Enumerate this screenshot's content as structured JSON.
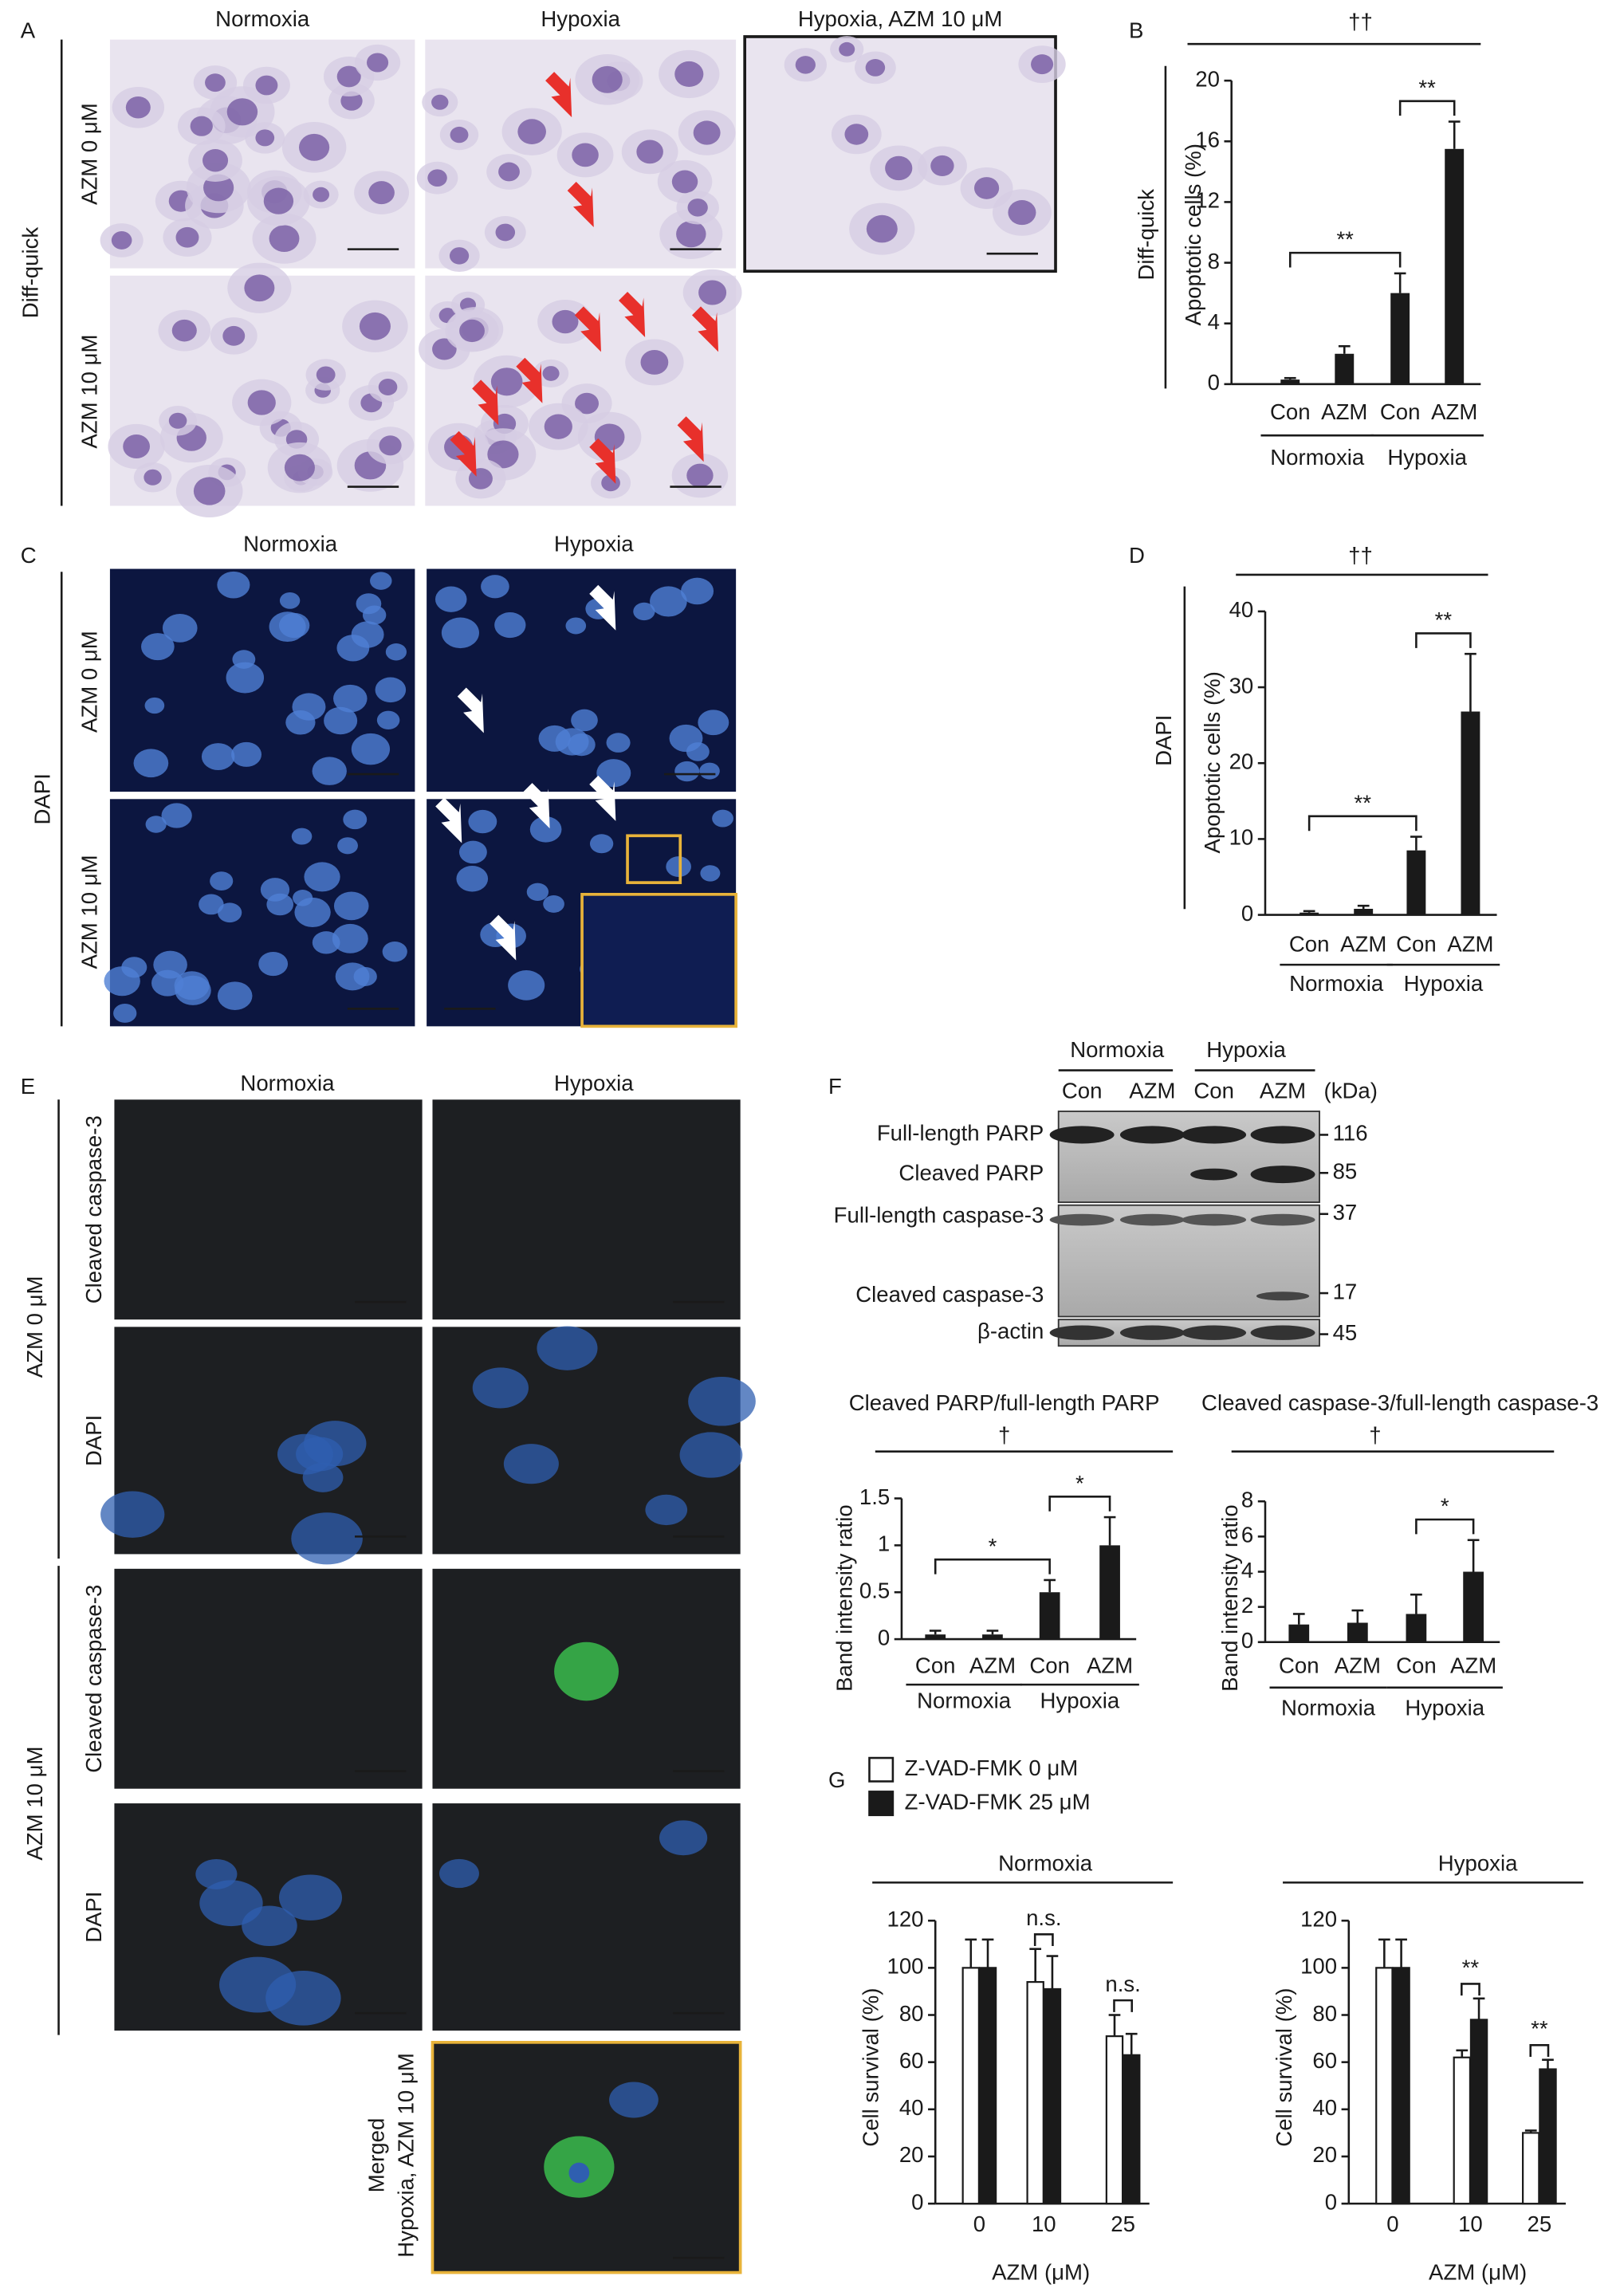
{
  "figure": {
    "panel_letters": [
      "A",
      "B",
      "C",
      "D",
      "E",
      "F",
      "G"
    ],
    "a": {
      "columns": [
        "Normoxia",
        "Hypoxia",
        "Hypoxia, AZM 10 μM"
      ],
      "rows": [
        "AZM 0 μM",
        "AZM 10 μM"
      ],
      "stain": "Diff-quick"
    },
    "c": {
      "columns": [
        "Normoxia",
        "Hypoxia"
      ],
      "rows": [
        "AZM 0 μM",
        "AZM 10 μM"
      ],
      "stain": "DAPI"
    },
    "e": {
      "columns": [
        "Normoxia",
        "Hypoxia"
      ],
      "rows": [
        "AZM 0 μM",
        "AZM 10 μM"
      ],
      "channels": [
        "Cleaved caspase-3",
        "DAPI"
      ],
      "merged": [
        "Merged",
        "Hypoxia, AZM 10 μM"
      ]
    },
    "f_blot": {
      "groups": [
        "Normoxia",
        "Hypoxia"
      ],
      "lanes": [
        "Con",
        "AZM",
        "Con",
        "AZM"
      ],
      "unit": "(kDa)",
      "bands": [
        "Full-length PARP",
        "Cleaved PARP",
        "Full-length caspase-3",
        "Cleaved caspase-3",
        "β-actin"
      ],
      "markers": [
        116,
        85,
        37,
        17,
        45
      ]
    }
  },
  "chart_data": [
    {
      "type": "bar",
      "side_label": "Diff-quick",
      "ylabel": "Apoptotic cells (%)",
      "categories": [
        "Con",
        "AZM",
        "Con",
        "AZM"
      ],
      "groups": [
        "Normoxia",
        "Hypoxia"
      ],
      "values": [
        0.3,
        2.0,
        6.0,
        15.5
      ],
      "errors": [
        0.1,
        0.5,
        1.3,
        1.8
      ],
      "color": "#1a1a1a",
      "ylim": [
        0,
        20
      ],
      "yticks": [
        0,
        4,
        8,
        12,
        16,
        20
      ],
      "brackets": [
        {
          "from": 0,
          "to": 2,
          "label": "**"
        },
        {
          "from": 2,
          "to": 3,
          "label": "**"
        }
      ],
      "overall": "††"
    },
    {
      "type": "bar",
      "side_label": "DAPI",
      "ylabel": "Apoptotic cells (%)",
      "categories": [
        "Con",
        "AZM",
        "Con",
        "AZM"
      ],
      "groups": [
        "Normoxia",
        "Hypoxia"
      ],
      "values": [
        0.3,
        0.8,
        8.5,
        26.8
      ],
      "errors": [
        0.2,
        0.4,
        1.8,
        7.6
      ],
      "color": "#1a1a1a",
      "ylim": [
        0,
        40
      ],
      "yticks": [
        0,
        10,
        20,
        30,
        40
      ],
      "brackets": [
        {
          "from": 0,
          "to": 2,
          "label": "**"
        },
        {
          "from": 2,
          "to": 3,
          "label": "**"
        }
      ],
      "overall": "††"
    },
    {
      "type": "bar",
      "title": "Cleaved PARP/full-length PARP",
      "ylabel": "Band intensity ratio",
      "categories": [
        "Con",
        "AZM",
        "Con",
        "AZM"
      ],
      "groups": [
        "Normoxia",
        "Hypoxia"
      ],
      "values": [
        0.05,
        0.05,
        0.5,
        1.0
      ],
      "errors": [
        0.04,
        0.04,
        0.13,
        0.3
      ],
      "color": "#1a1a1a",
      "ylim": [
        0,
        1.5
      ],
      "yticks": [
        0,
        0.5,
        1,
        1.5
      ],
      "brackets": [
        {
          "from": 0,
          "to": 2,
          "label": "*"
        },
        {
          "from": 2,
          "to": 3,
          "label": "*"
        }
      ],
      "overall": "†"
    },
    {
      "type": "bar",
      "title": "Cleaved caspase-3/full-length caspase-3",
      "ylabel": "Band intensity ratio",
      "categories": [
        "Con",
        "AZM",
        "Con",
        "AZM"
      ],
      "groups": [
        "Normoxia",
        "Hypoxia"
      ],
      "values": [
        1.0,
        1.1,
        1.6,
        4.0
      ],
      "errors": [
        0.6,
        0.7,
        1.1,
        1.8
      ],
      "color": "#1a1a1a",
      "ylim": [
        0,
        8
      ],
      "yticks": [
        0,
        2,
        4,
        6,
        8
      ],
      "brackets": [
        {
          "from": 2,
          "to": 3,
          "label": "*"
        }
      ],
      "overall": "†"
    },
    {
      "type": "grouped",
      "title": "Normoxia",
      "ylabel": "Cell survival (%)",
      "xlabel": "AZM (μM)",
      "categories": [
        "0",
        "10",
        "25"
      ],
      "series": [
        {
          "name": "Z-VAD-FMK 0 μM",
          "color": "#ffffff",
          "values": [
            100,
            94,
            71
          ],
          "errors": [
            12,
            14,
            9
          ]
        },
        {
          "name": "Z-VAD-FMK 25 μM",
          "color": "#1a1a1a",
          "values": [
            100,
            91,
            63
          ],
          "errors": [
            12,
            14,
            9
          ]
        }
      ],
      "ylim": [
        0,
        120
      ],
      "yticks": [
        0,
        20,
        40,
        60,
        80,
        100,
        120
      ],
      "legend": true,
      "brackets": [
        {
          "category": 1,
          "label": "n.s."
        },
        {
          "category": 2,
          "label": "n.s."
        }
      ]
    },
    {
      "type": "grouped",
      "title": "Hypoxia",
      "ylabel": "Cell survival (%)",
      "xlabel": "AZM (μM)",
      "categories": [
        "0",
        "10",
        "25"
      ],
      "series": [
        {
          "color": "#ffffff",
          "values": [
            100,
            62,
            30
          ],
          "errors": [
            12,
            3,
            1
          ]
        },
        {
          "color": "#1a1a1a",
          "values": [
            100,
            78,
            57
          ],
          "errors": [
            12,
            9,
            4
          ]
        }
      ],
      "ylim": [
        0,
        120
      ],
      "yticks": [
        0,
        20,
        40,
        60,
        80,
        100,
        120
      ],
      "brackets": [
        {
          "category": 1,
          "label": "**"
        },
        {
          "category": 2,
          "label": "**"
        }
      ]
    }
  ]
}
